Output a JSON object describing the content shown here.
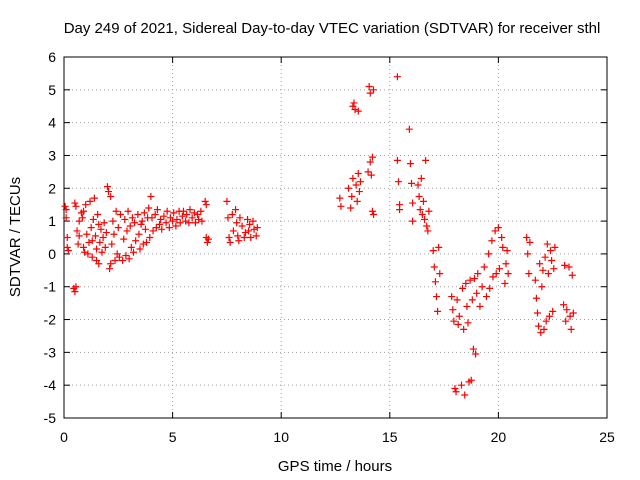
{
  "chart_data": {
    "type": "scatter",
    "title": "Day 249 of 2021, Sidereal Day-to-day VTEC variation (SDTVAR) for receiver sthl",
    "xlabel": "GPS time / hours",
    "ylabel": "SDTVAR / TECUs",
    "xlim": [
      0,
      25
    ],
    "ylim": [
      -5,
      6
    ],
    "xticks": [
      0,
      5,
      10,
      15,
      20,
      25
    ],
    "yticks": [
      -5,
      -4,
      -3,
      -2,
      -1,
      0,
      1,
      2,
      3,
      4,
      5,
      6
    ],
    "xtick_labels": [
      "0",
      "5",
      "10",
      "15",
      "20",
      "25"
    ],
    "ytick_labels": [
      "-5",
      "-4",
      "-3",
      "-2",
      "-1",
      "0",
      "1",
      "2",
      "3",
      "4",
      "5",
      "6"
    ],
    "grid": true,
    "marker": "+",
    "color": "#ff0000",
    "series": [
      {
        "name": "sthl",
        "points": [
          [
            0.05,
            1.45
          ],
          [
            0.1,
            1.35
          ],
          [
            0.1,
            1.1
          ],
          [
            0.15,
            0.5
          ],
          [
            0.15,
            0.2
          ],
          [
            0.2,
            0.1
          ],
          [
            0.45,
            -1.05
          ],
          [
            0.5,
            -1.15
          ],
          [
            0.55,
            -1.0
          ],
          [
            0.5,
            1.55
          ],
          [
            0.55,
            1.45
          ],
          [
            0.6,
            0.7
          ],
          [
            0.65,
            0.3
          ],
          [
            0.7,
            1.0
          ],
          [
            0.7,
            0.55
          ],
          [
            0.8,
            1.25
          ],
          [
            0.85,
            1.1
          ],
          [
            0.9,
            1.3
          ],
          [
            0.9,
            0.2
          ],
          [
            0.95,
            0.05
          ],
          [
            1.0,
            1.5
          ],
          [
            1.05,
            0.6
          ],
          [
            1.1,
            0.0
          ],
          [
            1.15,
            0.35
          ],
          [
            1.2,
            1.6
          ],
          [
            1.25,
            0.8
          ],
          [
            1.3,
            0.4
          ],
          [
            1.3,
            -0.1
          ],
          [
            1.35,
            1.05
          ],
          [
            1.4,
            1.7
          ],
          [
            1.45,
            0.55
          ],
          [
            1.5,
            0.15
          ],
          [
            1.5,
            -0.2
          ],
          [
            1.55,
            1.2
          ],
          [
            1.6,
            0.9
          ],
          [
            1.6,
            -0.3
          ],
          [
            1.65,
            0.35
          ],
          [
            1.7,
            0.75
          ],
          [
            1.75,
            0.05
          ],
          [
            1.8,
            0.5
          ],
          [
            1.85,
            0.95
          ],
          [
            1.9,
            0.2
          ],
          [
            1.95,
            0.65
          ],
          [
            2.0,
            2.05
          ],
          [
            2.05,
            1.9
          ],
          [
            2.1,
            -0.45
          ],
          [
            2.15,
            -0.3
          ],
          [
            2.15,
            1.75
          ],
          [
            2.2,
            0.3
          ],
          [
            2.25,
            1.0
          ],
          [
            2.3,
            0.6
          ],
          [
            2.35,
            -0.2
          ],
          [
            2.4,
            1.3
          ],
          [
            2.45,
            0.0
          ],
          [
            2.5,
            0.8
          ],
          [
            2.55,
            -0.1
          ],
          [
            2.6,
            1.2
          ],
          [
            2.7,
            -0.2
          ],
          [
            2.75,
            0.45
          ],
          [
            2.8,
            1.05
          ],
          [
            2.85,
            -0.05
          ],
          [
            2.9,
            0.7
          ],
          [
            2.95,
            1.3
          ],
          [
            3.0,
            -0.15
          ],
          [
            3.05,
            0.85
          ],
          [
            3.1,
            0.2
          ],
          [
            3.15,
            1.1
          ],
          [
            3.2,
            0.05
          ],
          [
            3.25,
            0.95
          ],
          [
            3.3,
            0.4
          ],
          [
            3.4,
            1.2
          ],
          [
            3.45,
            0.6
          ],
          [
            3.5,
            0.15
          ],
          [
            3.55,
            0.9
          ],
          [
            3.6,
            1.0
          ],
          [
            3.65,
            0.3
          ],
          [
            3.7,
            1.25
          ],
          [
            3.75,
            0.75
          ],
          [
            3.8,
            0.35
          ],
          [
            3.85,
            1.1
          ],
          [
            3.9,
            1.4
          ],
          [
            3.95,
            0.5
          ],
          [
            4.0,
            1.75
          ],
          [
            4.05,
            1.1
          ],
          [
            4.1,
            0.7
          ],
          [
            4.2,
            1.2
          ],
          [
            4.25,
            0.8
          ],
          [
            4.3,
            1.35
          ],
          [
            4.4,
            0.9
          ],
          [
            4.45,
            1.05
          ],
          [
            4.5,
            0.75
          ],
          [
            4.6,
            1.15
          ],
          [
            4.7,
            0.95
          ],
          [
            4.75,
            1.3
          ],
          [
            4.85,
            0.8
          ],
          [
            4.9,
            1.1
          ],
          [
            5.0,
            1.0
          ],
          [
            5.05,
            1.25
          ],
          [
            5.15,
            0.85
          ],
          [
            5.2,
            1.05
          ],
          [
            5.3,
            1.3
          ],
          [
            5.35,
            0.95
          ],
          [
            5.45,
            1.15
          ],
          [
            5.5,
            1.3
          ],
          [
            5.6,
            1.0
          ],
          [
            5.65,
            1.2
          ],
          [
            5.75,
            0.95
          ],
          [
            5.8,
            1.35
          ],
          [
            5.9,
            1.1
          ],
          [
            6.0,
            1.25
          ],
          [
            6.05,
            0.95
          ],
          [
            6.15,
            1.2
          ],
          [
            6.2,
            1.05
          ],
          [
            6.3,
            1.3
          ],
          [
            6.35,
            1.0
          ],
          [
            6.5,
            1.6
          ],
          [
            6.55,
            1.5
          ],
          [
            6.55,
            0.5
          ],
          [
            6.6,
            0.35
          ],
          [
            6.65,
            0.45
          ],
          [
            7.5,
            1.6
          ],
          [
            7.55,
            1.1
          ],
          [
            7.6,
            0.5
          ],
          [
            7.65,
            0.35
          ],
          [
            7.75,
            1.2
          ],
          [
            7.8,
            0.7
          ],
          [
            7.9,
            1.35
          ],
          [
            7.95,
            0.95
          ],
          [
            8.0,
            0.55
          ],
          [
            8.05,
            0.4
          ],
          [
            8.1,
            1.1
          ],
          [
            8.2,
            0.85
          ],
          [
            8.3,
            0.5
          ],
          [
            8.35,
            0.65
          ],
          [
            8.45,
            1.05
          ],
          [
            8.5,
            0.7
          ],
          [
            8.55,
            0.9
          ],
          [
            8.6,
            0.5
          ],
          [
            8.7,
            1.0
          ],
          [
            8.75,
            0.75
          ],
          [
            8.85,
            0.55
          ],
          [
            8.9,
            0.8
          ],
          [
            12.7,
            1.7
          ],
          [
            12.75,
            1.45
          ],
          [
            13.1,
            2.0
          ],
          [
            13.2,
            1.4
          ],
          [
            13.25,
            1.75
          ],
          [
            13.3,
            2.3
          ],
          [
            13.3,
            4.5
          ],
          [
            13.35,
            4.6
          ],
          [
            13.4,
            4.4
          ],
          [
            13.45,
            2.1
          ],
          [
            13.5,
            1.6
          ],
          [
            13.55,
            2.45
          ],
          [
            13.55,
            4.35
          ],
          [
            13.6,
            1.9
          ],
          [
            13.65,
            2.2
          ],
          [
            14.0,
            2.5
          ],
          [
            14.05,
            5.1
          ],
          [
            14.1,
            4.9
          ],
          [
            14.1,
            2.8
          ],
          [
            14.15,
            2.4
          ],
          [
            14.2,
            2.95
          ],
          [
            14.2,
            1.3
          ],
          [
            14.25,
            5.0
          ],
          [
            14.25,
            1.2
          ],
          [
            15.35,
            5.4
          ],
          [
            15.35,
            2.85
          ],
          [
            15.4,
            2.2
          ],
          [
            15.45,
            1.5
          ],
          [
            15.45,
            1.35
          ],
          [
            15.9,
            3.8
          ],
          [
            15.95,
            2.75
          ],
          [
            16.0,
            2.15
          ],
          [
            16.05,
            1.55
          ],
          [
            16.05,
            1.0
          ],
          [
            16.3,
            2.1
          ],
          [
            16.35,
            1.75
          ],
          [
            16.4,
            1.35
          ],
          [
            16.45,
            2.3
          ],
          [
            16.5,
            1.2
          ],
          [
            16.55,
            1.6
          ],
          [
            16.6,
            1.05
          ],
          [
            16.65,
            2.85
          ],
          [
            16.7,
            0.85
          ],
          [
            16.75,
            0.7
          ],
          [
            16.8,
            1.3
          ],
          [
            17.0,
            0.1
          ],
          [
            17.05,
            -0.4
          ],
          [
            17.1,
            -0.85
          ],
          [
            17.15,
            -1.3
          ],
          [
            17.2,
            -1.75
          ],
          [
            17.25,
            0.2
          ],
          [
            17.3,
            -0.6
          ],
          [
            17.85,
            -1.3
          ],
          [
            17.9,
            -1.7
          ],
          [
            17.95,
            -2.05
          ],
          [
            18.0,
            -4.1
          ],
          [
            18.05,
            -4.2
          ],
          [
            18.1,
            -1.4
          ],
          [
            18.15,
            -2.15
          ],
          [
            18.2,
            -1.9
          ],
          [
            18.3,
            -4.0
          ],
          [
            18.35,
            -1.05
          ],
          [
            18.4,
            -2.3
          ],
          [
            18.45,
            -4.3
          ],
          [
            18.5,
            -0.9
          ],
          [
            18.55,
            -1.6
          ],
          [
            18.6,
            -2.1
          ],
          [
            18.65,
            -3.9
          ],
          [
            18.7,
            -0.8
          ],
          [
            18.75,
            -3.85
          ],
          [
            18.8,
            -1.4
          ],
          [
            18.85,
            -2.9
          ],
          [
            18.9,
            -0.75
          ],
          [
            18.95,
            -3.05
          ],
          [
            19.0,
            -1.2
          ],
          [
            19.05,
            -0.6
          ],
          [
            19.15,
            -1.6
          ],
          [
            19.25,
            -1.0
          ],
          [
            19.35,
            -0.4
          ],
          [
            19.45,
            -1.3
          ],
          [
            19.55,
            0.0
          ],
          [
            19.6,
            -1.05
          ],
          [
            19.7,
            0.4
          ],
          [
            19.75,
            -0.7
          ],
          [
            19.85,
            0.7
          ],
          [
            19.9,
            -0.6
          ],
          [
            20.0,
            0.8
          ],
          [
            20.05,
            -0.45
          ],
          [
            20.15,
            0.5
          ],
          [
            20.2,
            0.2
          ],
          [
            20.3,
            -0.9
          ],
          [
            20.35,
            -0.3
          ],
          [
            20.4,
            0.1
          ],
          [
            20.45,
            -0.6
          ],
          [
            21.3,
            0.5
          ],
          [
            21.35,
            0.0
          ],
          [
            21.4,
            -0.6
          ],
          [
            21.45,
            0.35
          ],
          [
            21.7,
            -0.8
          ],
          [
            21.75,
            -1.35
          ],
          [
            21.8,
            -1.8
          ],
          [
            21.85,
            -2.2
          ],
          [
            21.9,
            -0.3
          ],
          [
            21.95,
            -2.4
          ],
          [
            22.0,
            -1.0
          ],
          [
            22.05,
            -0.5
          ],
          [
            22.1,
            -2.3
          ],
          [
            22.15,
            -0.1
          ],
          [
            22.2,
            -2.05
          ],
          [
            22.25,
            0.3
          ],
          [
            22.3,
            -0.6
          ],
          [
            22.35,
            -1.9
          ],
          [
            22.4,
            0.1
          ],
          [
            22.45,
            -0.2
          ],
          [
            22.5,
            -1.75
          ],
          [
            22.55,
            -0.45
          ],
          [
            22.6,
            0.2
          ],
          [
            23.0,
            -1.55
          ],
          [
            23.05,
            -0.35
          ],
          [
            23.1,
            -2.05
          ],
          [
            23.15,
            -1.7
          ],
          [
            23.25,
            -0.4
          ],
          [
            23.3,
            -1.9
          ],
          [
            23.35,
            -2.3
          ],
          [
            23.4,
            -0.65
          ],
          [
            23.45,
            -1.8
          ]
        ]
      }
    ]
  }
}
